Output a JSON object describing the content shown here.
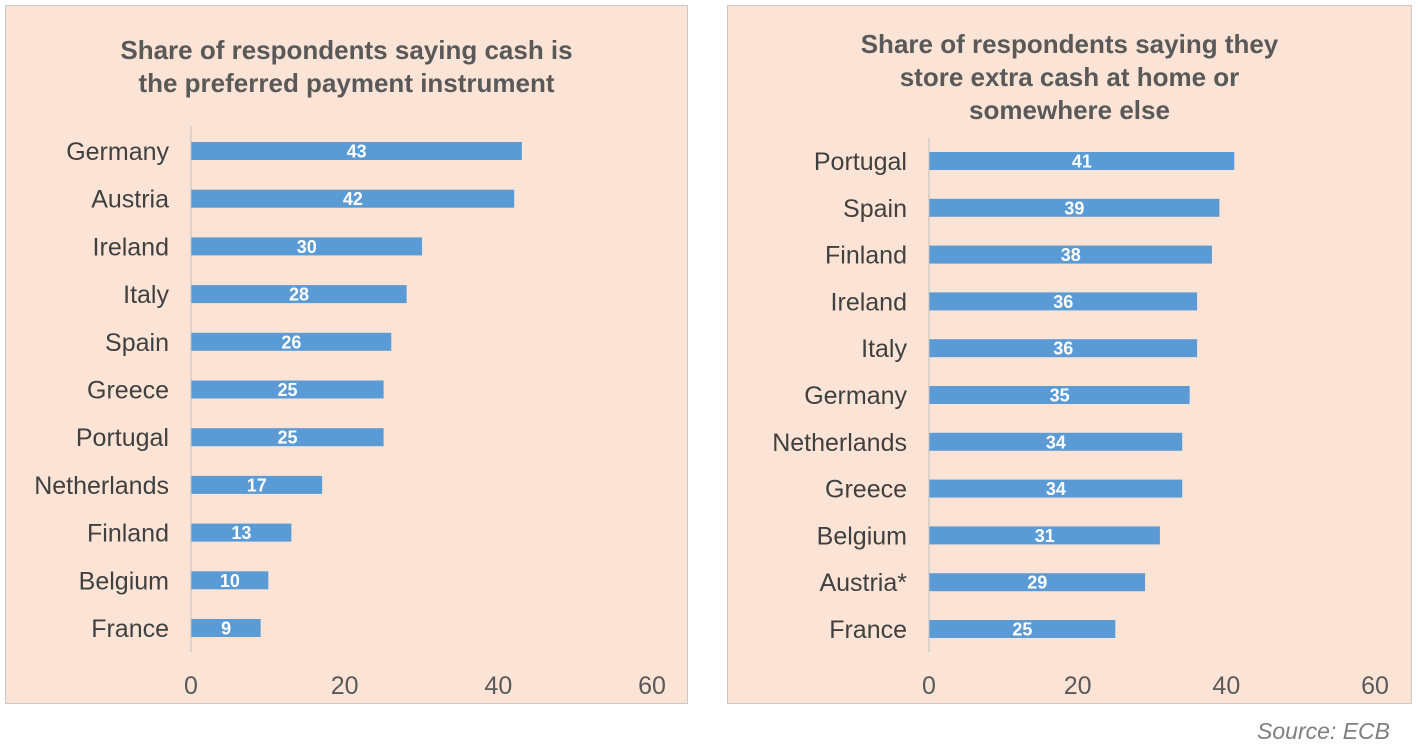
{
  "source": "Source: ECB",
  "chart_data": [
    {
      "type": "bar",
      "orientation": "horizontal",
      "title_lines": [
        "Share of respondents saying cash is",
        "the preferred payment instrument"
      ],
      "categories": [
        "Germany",
        "Austria",
        "Ireland",
        "Italy",
        "Spain",
        "Greece",
        "Portugal",
        "Netherlands",
        "Finland",
        "Belgium",
        "France"
      ],
      "values": [
        43,
        42,
        30,
        28,
        26,
        25,
        25,
        17,
        13,
        10,
        9
      ],
      "xlim": [
        0,
        60
      ],
      "xticks": [
        "0",
        "20",
        "40",
        "60"
      ],
      "bar_color": "#5b9bd5",
      "data_labels": true
    },
    {
      "type": "bar",
      "orientation": "horizontal",
      "title_lines": [
        "Share of respondents saying they",
        "store extra cash at home or",
        "somewhere else"
      ],
      "categories": [
        "Portugal",
        "Spain",
        "Finland",
        "Ireland",
        "Italy",
        "Germany",
        "Netherlands",
        "Greece",
        "Belgium",
        "Austria*",
        "France"
      ],
      "values": [
        41,
        39,
        38,
        36,
        36,
        35,
        34,
        34,
        31,
        29,
        25
      ],
      "xlim": [
        0,
        60
      ],
      "xticks": [
        "0",
        "20",
        "40",
        "60"
      ],
      "bar_color": "#5b9bd5",
      "data_labels": true
    }
  ]
}
